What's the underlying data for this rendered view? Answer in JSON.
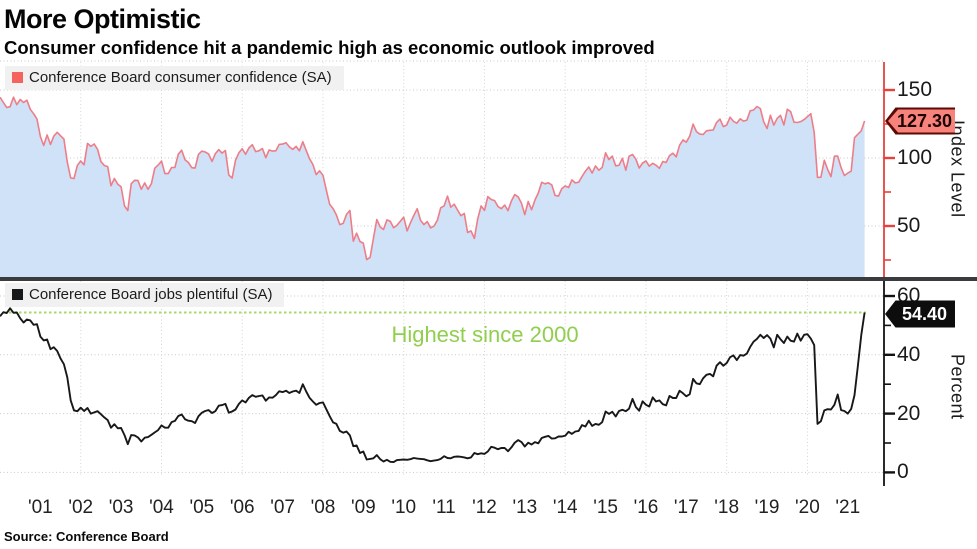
{
  "header": {
    "title": "More Optimistic",
    "subtitle": "Consumer confidence hit a pandemic high as economic outlook improved"
  },
  "footer": {
    "source": "Source: Conference Board"
  },
  "colors": {
    "confidence_line": "#ee7d88",
    "confidence_fill": "#cfe2f8",
    "confidence_marker": "#f4635e",
    "axis_red": "#e8413c",
    "jobs_line": "#17181a",
    "green_line": "#a5d96b",
    "green_text": "#90cf4d",
    "grid": "#c9c9c9",
    "divider": "#3a3b3f",
    "badge_red_bg": "#f8837d",
    "badge_red_border": "#5c0a04",
    "badge_black": "#0d0d0d"
  },
  "x_axis": {
    "labels": [
      "'01",
      "'02",
      "'03",
      "'04",
      "'05",
      "'06",
      "'07",
      "'08",
      "'09",
      "'10",
      "'11",
      "'12",
      "'13",
      "'14",
      "'15",
      "'16",
      "'17",
      "'18",
      "'19",
      "'20",
      "'21"
    ],
    "start_year": 2000,
    "end_year": 2021.5,
    "gridline_years": [
      2002,
      2004,
      2006,
      2008,
      2010,
      2012,
      2014,
      2016,
      2018,
      2020
    ]
  },
  "chart_data": [
    {
      "type": "area",
      "name": "Conference Board consumer confidence (SA)",
      "axis_label": "Index Level",
      "last_value": 127.3,
      "last_value_label": "127.30",
      "ylim": [
        12.5,
        172
      ],
      "yticks": [
        50,
        100,
        150
      ],
      "yticks_minor": [
        25,
        75,
        125
      ],
      "x_start_year": 2000,
      "x_interval": "monthly",
      "values": [
        144.7,
        140.8,
        137.1,
        137.7,
        144.7,
        139.2,
        143.0,
        140.8,
        142.5,
        135.8,
        132.6,
        128.6,
        115.7,
        109.2,
        116.9,
        109.9,
        116.1,
        118.9,
        116.3,
        114.0,
        97.0,
        85.3,
        84.9,
        94.6,
        97.8,
        95.0,
        110.7,
        108.5,
        110.3,
        106.3,
        97.4,
        94.5,
        93.7,
        79.6,
        84.9,
        80.7,
        78.8,
        64.8,
        61.4,
        81.0,
        83.6,
        83.5,
        77.0,
        81.7,
        77.0,
        81.1,
        92.5,
        94.8,
        97.7,
        88.5,
        88.5,
        93.0,
        93.1,
        102.8,
        105.7,
        98.7,
        96.7,
        92.9,
        92.6,
        102.7,
        105.1,
        104.4,
        103.0,
        97.5,
        103.1,
        106.2,
        103.6,
        105.5,
        87.5,
        85.2,
        98.3,
        103.8,
        106.8,
        102.7,
        107.5,
        109.8,
        104.7,
        105.4,
        107.0,
        100.2,
        105.9,
        105.1,
        105.3,
        110.0,
        110.2,
        111.2,
        108.2,
        106.3,
        108.5,
        105.3,
        111.9,
        105.6,
        99.5,
        95.2,
        87.8,
        90.6,
        87.3,
        76.4,
        65.9,
        62.8,
        58.1,
        51.0,
        51.9,
        58.5,
        61.4,
        38.8,
        44.7,
        38.6,
        37.4,
        25.3,
        26.9,
        40.8,
        54.8,
        49.3,
        47.4,
        54.5,
        53.4,
        48.7,
        50.6,
        53.6,
        56.5,
        46.4,
        52.3,
        57.7,
        62.7,
        54.3,
        51.0,
        53.2,
        48.6,
        49.9,
        54.3,
        63.4,
        64.8,
        72.0,
        63.8,
        66.0,
        61.7,
        57.6,
        59.2,
        45.2,
        46.4,
        40.9,
        55.2,
        64.8,
        61.5,
        71.6,
        69.5,
        68.7,
        64.4,
        62.7,
        65.4,
        61.3,
        68.4,
        73.1,
        71.5,
        66.7,
        58.4,
        68.0,
        61.9,
        69.0,
        74.3,
        82.1,
        81.0,
        81.8,
        80.2,
        72.4,
        72.0,
        77.5,
        79.4,
        78.3,
        83.9,
        81.7,
        82.2,
        86.4,
        90.3,
        93.4,
        89.0,
        94.1,
        91.0,
        93.1,
        103.8,
        98.8,
        101.4,
        94.3,
        94.6,
        99.8,
        91.0,
        101.3,
        102.6,
        99.1,
        92.6,
        96.3,
        97.8,
        94.0,
        96.1,
        94.7,
        92.4,
        97.4,
        96.7,
        101.8,
        103.5,
        100.8,
        109.4,
        113.3,
        111.6,
        116.1,
        124.9,
        119.4,
        117.6,
        117.3,
        120.0,
        120.4,
        120.6,
        126.2,
        128.6,
        123.1,
        124.3,
        130.0,
        127.0,
        125.6,
        128.8,
        127.1,
        127.9,
        134.7,
        135.3,
        137.9,
        136.4,
        126.6,
        121.7,
        131.4,
        124.2,
        129.2,
        131.3,
        124.3,
        135.8,
        134.2,
        126.3,
        126.1,
        126.8,
        128.2,
        130.4,
        132.6,
        118.8,
        85.7,
        85.9,
        98.3,
        91.7,
        86.3,
        101.3,
        101.4,
        92.9,
        87.1,
        88.9,
        90.4,
        114.9,
        117.5,
        120.0,
        127.3
      ]
    },
    {
      "type": "line",
      "name": "Conference Board jobs plentiful (SA)",
      "axis_label": "Percent",
      "last_value": 54.4,
      "last_value_label": "54.40",
      "ylim": [
        -6,
        65
      ],
      "yticks": [
        0,
        20,
        40,
        60
      ],
      "yticks_minor": [
        10,
        30,
        50
      ],
      "annotation": {
        "text": "Highest since 2000",
        "level": 54.4
      },
      "x_start_year": 2000,
      "x_interval": "monthly",
      "values": [
        53.1,
        54.5,
        54.2,
        55.8,
        54.3,
        54.4,
        52.4,
        51.0,
        52.0,
        51.7,
        50.2,
        50.4,
        46.2,
        44.9,
        45.2,
        41.9,
        42.6,
        41.3,
        38.7,
        36.8,
        32.3,
        24.5,
        21.1,
        20.8,
        22.0,
        20.9,
        21.9,
        20.0,
        20.4,
        20.8,
        19.8,
        18.7,
        17.8,
        15.2,
        16.4,
        15.0,
        15.1,
        12.7,
        9.6,
        12.7,
        12.6,
        11.9,
        10.5,
        11.8,
        12.0,
        12.8,
        13.6,
        14.4,
        16.0,
        15.2,
        15.2,
        17.1,
        17.5,
        19.2,
        19.7,
        18.1,
        17.6,
        17.4,
        16.8,
        19.1,
        20.3,
        20.9,
        21.2,
        20.2,
        20.8,
        22.7,
        22.9,
        23.3,
        20.3,
        20.7,
        21.4,
        23.3,
        24.5,
        23.8,
        25.4,
        26.3,
        25.7,
        26.0,
        26.2,
        24.4,
        25.5,
        25.4,
        26.3,
        27.6,
        27.3,
        27.8,
        27.0,
        27.5,
        27.8,
        27.0,
        30.0,
        27.5,
        25.4,
        24.1,
        23.0,
        23.6,
        23.8,
        21.5,
        19.1,
        17.0,
        16.5,
        14.1,
        13.5,
        13.9,
        12.6,
        8.9,
        9.2,
        6.6,
        7.1,
        4.4,
        4.6,
        4.8,
        5.9,
        4.5,
        3.7,
        4.3,
        3.6,
        3.5,
        4.2,
        4.3,
        4.4,
        4.3,
        4.5,
        4.9,
        4.7,
        4.6,
        4.5,
        4.1,
        3.8,
        4.0,
        4.2,
        4.6,
        5.5,
        4.9,
        4.8,
        5.3,
        5.4,
        5.3,
        5.1,
        4.8,
        5.1,
        6.6,
        6.2,
        6.5,
        6.3,
        7.1,
        8.7,
        8.4,
        7.9,
        8.3,
        8.3,
        7.2,
        8.5,
        10.1,
        11.0,
        10.3,
        8.8,
        10.1,
        9.5,
        10.3,
        9.9,
        11.7,
        12.1,
        12.4,
        11.5,
        11.6,
        12.2,
        12.2,
        12.5,
        13.8,
        13.1,
        13.9,
        14.1,
        16.1,
        15.6,
        17.6,
        15.8,
        16.5,
        16.2,
        17.1,
        20.7,
        19.9,
        20.6,
        19.0,
        20.9,
        21.3,
        20.8,
        21.7,
        25.0,
        22.2,
        21.0,
        24.2,
        23.0,
        22.4,
        25.5,
        24.1,
        24.5,
        23.2,
        22.8,
        26.0,
        25.3,
        25.3,
        27.8,
        26.9,
        25.9,
        26.6,
        31.8,
        30.3,
        30.0,
        32.0,
        33.2,
        33.5,
        32.7,
        36.3,
        37.5,
        36.3,
        37.2,
        39.2,
        39.8,
        38.2,
        39.9,
        39.7,
        40.4,
        42.7,
        44.5,
        45.4,
        46.8,
        45.7,
        46.7,
        45.5,
        42.5,
        46.8,
        45.3,
        44.0,
        46.2,
        44.8,
        44.5,
        47.2,
        44.8,
        46.8,
        47.0,
        45.5,
        43.3,
        16.5,
        17.4,
        21.1,
        21.5,
        21.4,
        23.0,
        26.5,
        21.2,
        20.9,
        20.0,
        21.6,
        26.3,
        36.3,
        46.8,
        54.4
      ]
    }
  ]
}
